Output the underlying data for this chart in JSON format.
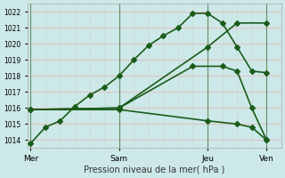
{
  "background_color": "#cce8e8",
  "grid_color_h": "#e8b8b8",
  "grid_color_v": "#c8d8c8",
  "line_color": "#1a5c1a",
  "xlabel": "Pression niveau de la mer( hPa )",
  "xtick_labels": [
    "Mer",
    "Sam",
    "Jeu",
    "Ven"
  ],
  "xtick_positions": [
    0,
    3,
    6,
    8
  ],
  "ylim": [
    1013.5,
    1022.5
  ],
  "yticks": [
    1014,
    1015,
    1016,
    1017,
    1018,
    1019,
    1020,
    1021,
    1022
  ],
  "xlim": [
    -0.1,
    8.5
  ],
  "line1": {
    "x": [
      0,
      0.5,
      1,
      1.5,
      2,
      2.5,
      3,
      3.5,
      4,
      4.5,
      5,
      5.5,
      6,
      6.5,
      7,
      7.5,
      8
    ],
    "y": [
      1013.8,
      1014.8,
      1015.2,
      1016.1,
      1016.8,
      1017.3,
      1018.0,
      1019.0,
      1019.9,
      1020.5,
      1021.0,
      1021.9,
      1021.9,
      1021.3,
      1019.8,
      1018.3,
      1018.2
    ]
  },
  "line2": {
    "x": [
      0,
      3,
      6,
      7,
      8
    ],
    "y": [
      1015.9,
      1016.0,
      1019.8,
      1021.3,
      1021.3
    ]
  },
  "line3": {
    "x": [
      0,
      3,
      5.5,
      6.5,
      7,
      7.5,
      8
    ],
    "y": [
      1015.9,
      1016.0,
      1018.6,
      1018.6,
      1018.3,
      1016.0,
      1014.0
    ]
  },
  "line4": {
    "x": [
      0,
      3,
      6,
      7,
      7.5,
      8
    ],
    "y": [
      1015.9,
      1015.9,
      1015.2,
      1015.0,
      1014.8,
      1014.0
    ]
  },
  "vline_positions": [
    0,
    3,
    6,
    8
  ],
  "figsize": [
    3.2,
    2.0
  ],
  "dpi": 100,
  "xlabel_fontsize": 7,
  "ytick_fontsize": 5.5,
  "xtick_fontsize": 6.5
}
